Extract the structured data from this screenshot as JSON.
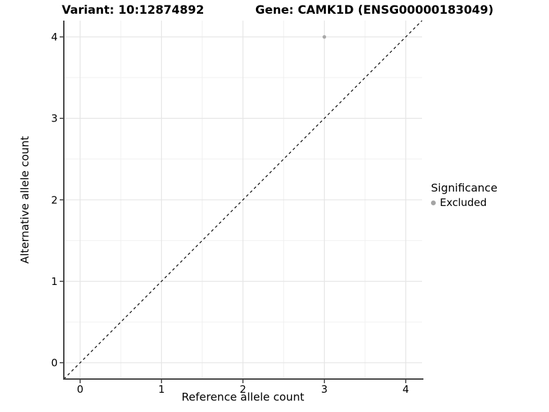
{
  "titles": {
    "variant": "Variant: 10:12874892",
    "gene": "Gene: CAMK1D (ENSG00000183049)"
  },
  "chart_data": {
    "type": "scatter",
    "xlabel": "Reference allele count",
    "ylabel": "Alternative allele count",
    "xlim": [
      -0.2,
      4.2
    ],
    "ylim": [
      -0.2,
      4.2
    ],
    "x_ticks": [
      0,
      1,
      2,
      3,
      4
    ],
    "y_ticks": [
      0,
      1,
      2,
      3,
      4
    ],
    "x_minor_ticks": [
      0.5,
      1.5,
      2.5,
      3.5
    ],
    "y_minor_ticks": [
      0.5,
      1.5,
      2.5,
      3.5
    ],
    "grid": "major+minor",
    "points": [
      {
        "x": 3,
        "y": 4,
        "significance": "Excluded"
      }
    ],
    "reference_line": {
      "type": "abline",
      "slope": 1,
      "intercept": 0,
      "style": "dashed",
      "color": "#000000"
    },
    "legend": {
      "title": "Significance",
      "position": "right",
      "entries": [
        {
          "label": "Excluded",
          "color": "#a4a4a4",
          "marker": "circle"
        }
      ]
    },
    "colors": {
      "background": "#ffffff",
      "point": "#a8a8a8",
      "grid_major": "#e6e6e6",
      "grid_minor": "#f0f0f0",
      "axis_line": "#424242",
      "tick_mark": "#333333",
      "tick_label": "#000000"
    }
  }
}
